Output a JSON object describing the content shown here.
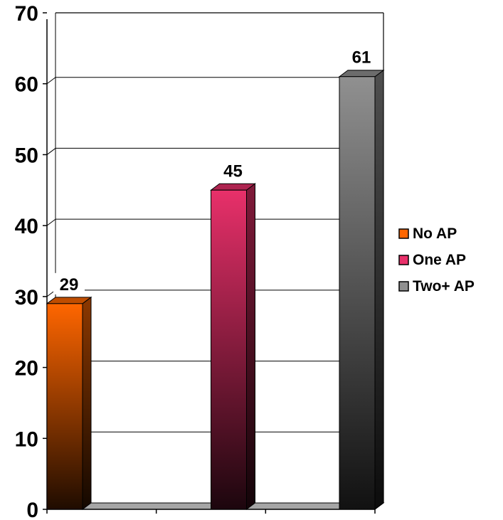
{
  "chart_data": {
    "type": "bar",
    "categories": [
      ""
    ],
    "series": [
      {
        "name": "No AP",
        "values": [
          29
        ],
        "color": "#ff6600"
      },
      {
        "name": "One AP",
        "values": [
          45
        ],
        "color": "#e8306a"
      },
      {
        "name": "Two+ AP",
        "values": [
          61
        ],
        "color": "#909090"
      }
    ],
    "ylim": [
      0,
      70
    ],
    "yticks": [
      "0",
      "10",
      "20",
      "30",
      "40",
      "50",
      "60",
      "70"
    ],
    "data_labels": [
      "29",
      "45",
      "61"
    ],
    "grid": true,
    "three_d": true,
    "legend_position": "right"
  }
}
